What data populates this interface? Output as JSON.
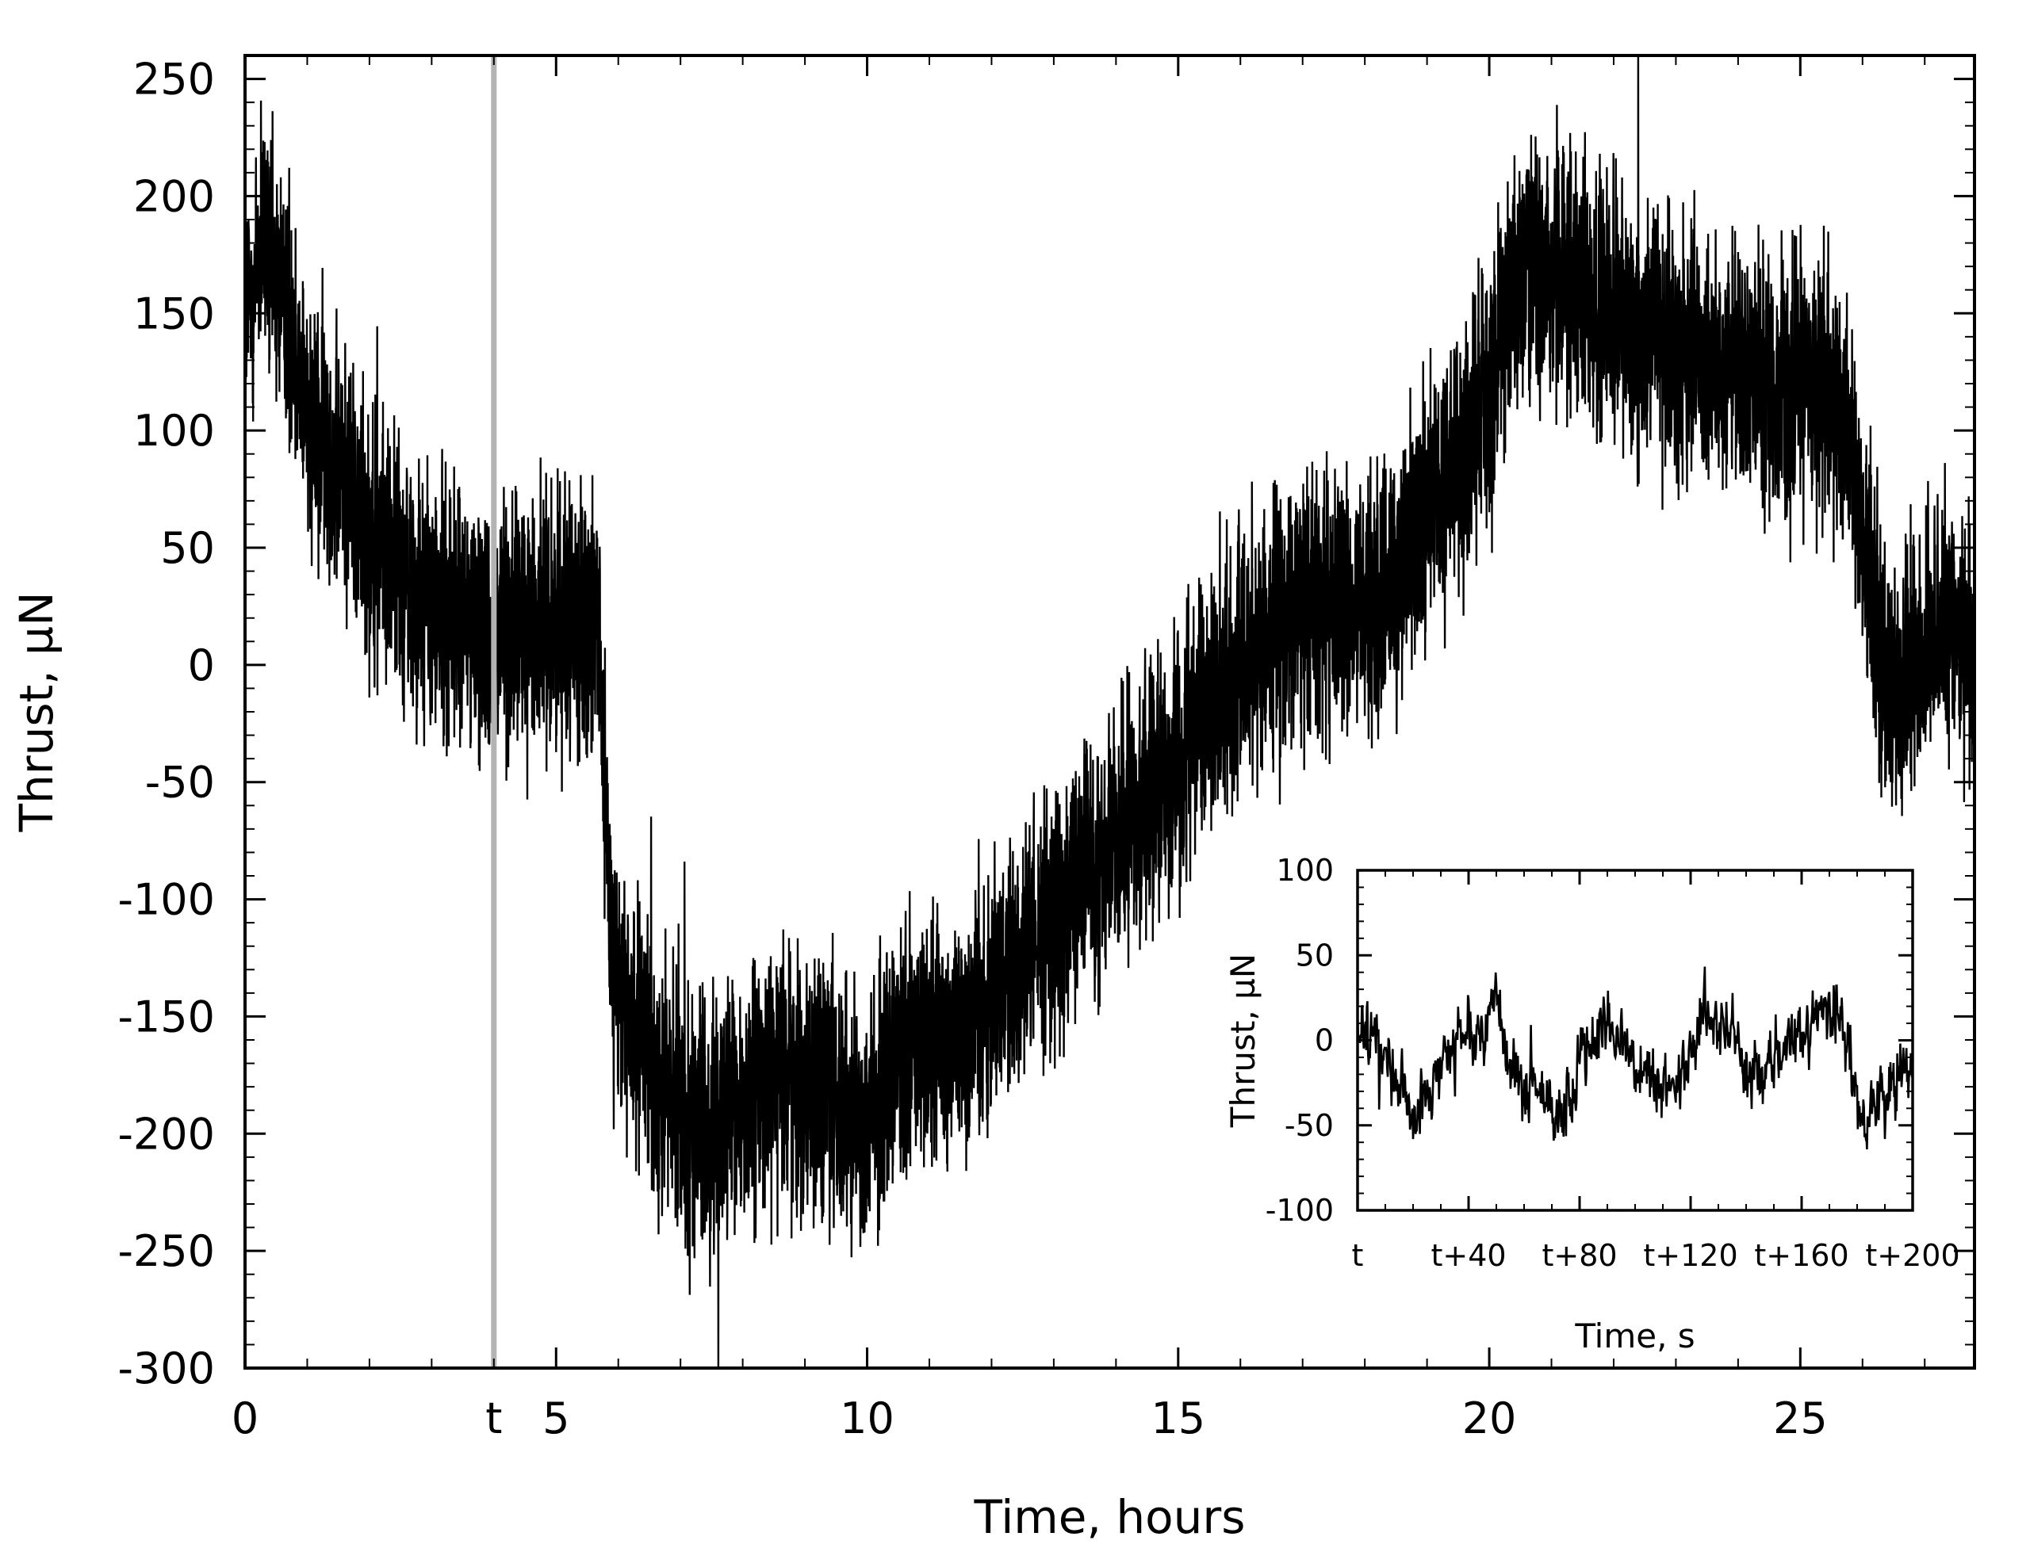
{
  "chart_data": [
    {
      "type": "line",
      "xlabel": "Time, hours",
      "ylabel": "Thrust, µN",
      "xlim": [
        0,
        27.8
      ],
      "ylim": [
        -300,
        260
      ],
      "x_ticks": [
        0,
        5,
        10,
        15,
        20,
        25
      ],
      "x_tick_labels": [
        "0",
        "5",
        "10",
        "15",
        "20",
        "25"
      ],
      "y_ticks": [
        250,
        200,
        150,
        100,
        50,
        0,
        -50,
        -100,
        -150,
        -200,
        -250,
        -300
      ],
      "y_tick_labels": [
        "250",
        "200",
        "150",
        "100",
        "50",
        "0",
        "-50",
        "-100",
        "-150",
        "-200",
        "-250",
        "-300"
      ],
      "marker": {
        "label": "t",
        "x": 4.0,
        "color": "#b3b3b3"
      },
      "grid": false,
      "legend": "none",
      "series": [
        {
          "color": "#000000",
          "x": [
            0,
            0.3,
            0.7,
            1.0,
            1.5,
            2.0,
            2.5,
            3.0,
            3.5,
            4.0,
            4.5,
            5.0,
            5.5,
            5.7,
            5.85,
            6.0,
            6.5,
            7.0,
            7.5,
            8.0,
            8.5,
            9.0,
            9.5,
            10.0,
            10.5,
            11.0,
            11.5,
            12.0,
            12.5,
            13.0,
            13.5,
            14.0,
            14.5,
            15.0,
            15.5,
            16.0,
            16.5,
            17.0,
            17.5,
            18.0,
            18.5,
            19.0,
            19.5,
            20.0,
            20.3,
            20.6,
            21.0,
            21.5,
            22.0,
            22.5,
            23.0,
            23.5,
            24.0,
            24.5,
            25.0,
            25.5,
            25.8,
            26.0,
            26.3,
            26.6,
            27.0,
            27.4,
            27.8
          ],
          "y_center": [
            150,
            180,
            150,
            110,
            85,
            60,
            40,
            25,
            20,
            15,
            15,
            20,
            20,
            0,
            -100,
            -140,
            -170,
            -190,
            -200,
            -190,
            -175,
            -175,
            -185,
            -190,
            -170,
            -160,
            -155,
            -140,
            -125,
            -110,
            -90,
            -75,
            -55,
            -40,
            -20,
            0,
            15,
            25,
            25,
            20,
            40,
            65,
            90,
            120,
            155,
            175,
            170,
            160,
            150,
            140,
            135,
            130,
            125,
            120,
            120,
            115,
            100,
            60,
            0,
            -10,
            10,
            20,
            0
          ],
          "noise_amplitude": 60
        }
      ]
    },
    {
      "type": "line",
      "inset": true,
      "xlabel": "Time, s",
      "ylabel": "Thrust, µN",
      "xlim": [
        0,
        200
      ],
      "ylim": [
        -100,
        100
      ],
      "x_ticks": [
        0,
        40,
        80,
        120,
        160,
        200
      ],
      "x_tick_labels": [
        "t",
        "t+40",
        "t+80",
        "t+120",
        "t+160",
        "t+200"
      ],
      "y_ticks": [
        100,
        50,
        0,
        -50,
        -100
      ],
      "y_tick_labels": [
        "100",
        "50",
        "0",
        "-50",
        "-100"
      ],
      "grid": false,
      "legend": "none",
      "series": [
        {
          "color": "#000000",
          "x": [
            0,
            5,
            10,
            15,
            20,
            25,
            30,
            35,
            40,
            45,
            50,
            55,
            60,
            65,
            70,
            75,
            80,
            85,
            90,
            95,
            100,
            105,
            110,
            115,
            120,
            125,
            130,
            135,
            140,
            145,
            150,
            155,
            160,
            165,
            170,
            175,
            180,
            185,
            190,
            195,
            200
          ],
          "y_center": [
            5,
            0,
            -10,
            -25,
            -45,
            -30,
            -15,
            -5,
            0,
            5,
            30,
            -20,
            -30,
            -35,
            -40,
            -50,
            -10,
            5,
            10,
            0,
            -15,
            -20,
            -30,
            -25,
            -10,
            15,
            10,
            5,
            -15,
            -20,
            -15,
            -5,
            5,
            20,
            15,
            0,
            -40,
            -45,
            -35,
            -20,
            -10
          ],
          "noise_amplitude": 20
        }
      ]
    }
  ]
}
